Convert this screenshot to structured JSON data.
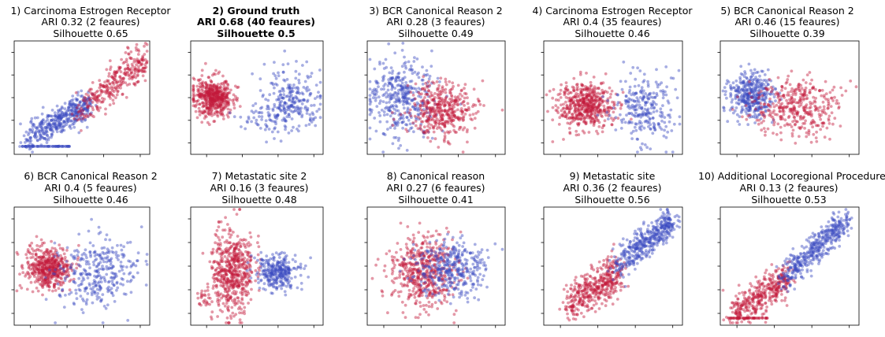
{
  "colors": {
    "cluster_a": "#c41a3c",
    "cluster_b": "#3b4cc0",
    "frame": "#000000"
  },
  "chart_data": [
    {
      "type": "scatter",
      "title": "1) Carcinoma Estrogen Receptor",
      "ari_text": "ARI 0.32  (2 feaures)",
      "silhouette_text": "Silhouette 0.65",
      "ari": 0.32,
      "features": 2,
      "silhouette": 0.65,
      "highlight": false,
      "pattern": "diagonal-floor"
    },
    {
      "type": "scatter",
      "title": "2) Ground truth",
      "ari_text": "ARI 0.68  (40 feaures)",
      "silhouette_text": "Silhouette 0.5",
      "ari": 0.68,
      "features": 40,
      "silhouette": 0.5,
      "highlight": true,
      "pattern": "red-left-blue-right-high"
    },
    {
      "type": "scatter",
      "title": "3) BCR Canonical Reason 2",
      "ari_text": "ARI 0.28  (3 feaures)",
      "silhouette_text": "Silhouette 0.49",
      "ari": 0.28,
      "features": 3,
      "silhouette": 0.49,
      "highlight": false,
      "pattern": "blue-left-red-right"
    },
    {
      "type": "scatter",
      "title": "4) Carcinoma Estrogen Receptor",
      "ari_text": "ARI 0.4  (35 feaures)",
      "silhouette_text": "Silhouette 0.46",
      "ari": 0.4,
      "features": 35,
      "silhouette": 0.46,
      "highlight": false,
      "pattern": "red-left-blue-right"
    },
    {
      "type": "scatter",
      "title": "5) BCR Canonical Reason 2",
      "ari_text": "ARI 0.46  (15 feaures)",
      "silhouette_text": "Silhouette 0.39",
      "ari": 0.46,
      "features": 15,
      "silhouette": 0.39,
      "highlight": false,
      "pattern": "blue-left-red-right-wide"
    },
    {
      "type": "scatter",
      "title": "6) BCR Canonical Reason 2",
      "ari_text": "ARI 0.4  (5 feaures)",
      "silhouette_text": "Silhouette 0.46",
      "ari": 0.4,
      "features": 5,
      "silhouette": 0.46,
      "highlight": false,
      "pattern": "red-left-blue-right-wide"
    },
    {
      "type": "scatter",
      "title": "7) Metastatic site 2",
      "ari_text": "ARI 0.16  (3 feaures)",
      "silhouette_text": "Silhouette 0.48",
      "ari": 0.16,
      "features": 3,
      "silhouette": 0.48,
      "highlight": false,
      "pattern": "red-tall-blue-right"
    },
    {
      "type": "scatter",
      "title": "8) Canonical reason",
      "ari_text": "ARI 0.27  (6 feaures)",
      "silhouette_text": "Silhouette 0.41",
      "ari": 0.27,
      "features": 6,
      "silhouette": 0.41,
      "highlight": false,
      "pattern": "mixed-center"
    },
    {
      "type": "scatter",
      "title": "9) Metastatic site",
      "ari_text": "ARI 0.36  (2 feaures)",
      "silhouette_text": "Silhouette 0.56",
      "ari": 0.36,
      "features": 2,
      "silhouette": 0.56,
      "highlight": false,
      "pattern": "diagonal"
    },
    {
      "type": "scatter",
      "title": "10) Additional Locoregional Procedure",
      "ari_text": "ARI 0.13  (2 feaures)",
      "silhouette_text": "Silhouette 0.53",
      "ari": 0.13,
      "features": 2,
      "silhouette": 0.53,
      "highlight": false,
      "pattern": "diagonal-floor-red"
    }
  ]
}
